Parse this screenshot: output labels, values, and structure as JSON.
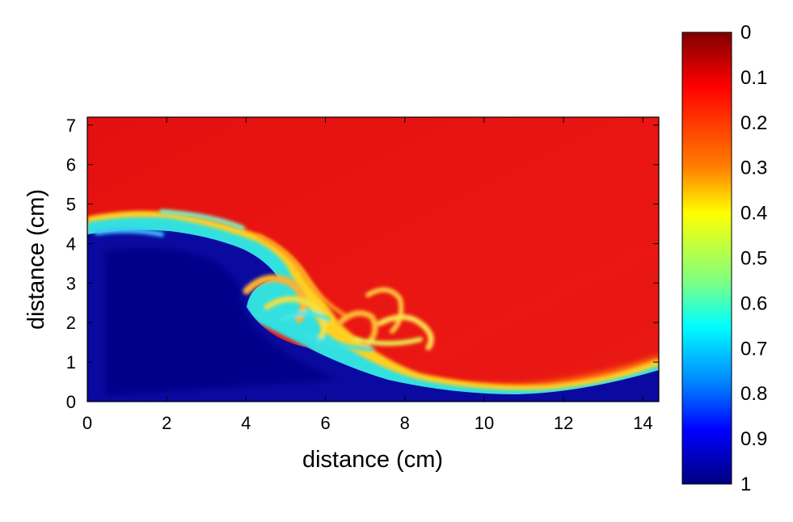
{
  "chart_data": {
    "type": "heatmap",
    "title": "",
    "xlabel": "distance (cm)",
    "ylabel": "distance (cm)",
    "xlim": [
      0,
      14.4
    ],
    "ylim": [
      0,
      7.2
    ],
    "x_ticks": [
      "0",
      "2",
      "4",
      "6",
      "8",
      "10",
      "12",
      "14"
    ],
    "y_ticks": [
      "0",
      "1",
      "2",
      "3",
      "4",
      "5",
      "6",
      "7"
    ],
    "colorbar": {
      "range": [
        0,
        1
      ],
      "orientation": "vertical",
      "reversed": true,
      "colormap": "jet",
      "labels": [
        "0",
        "0.1",
        "0.2",
        "0.3",
        "0.4",
        "0.5",
        "0.6",
        "0.7",
        "0.8",
        "0.9",
        "1"
      ]
    },
    "field_description_values": {
      "background_value": 0.12,
      "dense_region_value": 1.0,
      "interface_profile": [
        {
          "x": 0.0,
          "y": 4.5
        },
        {
          "x": 1.5,
          "y": 4.75
        },
        {
          "x": 2.5,
          "y": 4.7
        },
        {
          "x": 3.5,
          "y": 4.4
        },
        {
          "x": 4.5,
          "y": 3.8
        },
        {
          "x": 5.0,
          "y": 3.2
        },
        {
          "x": 5.5,
          "y": 2.6
        },
        {
          "x": 6.5,
          "y": 1.8
        },
        {
          "x": 8.0,
          "y": 1.05
        },
        {
          "x": 10.0,
          "y": 0.55
        },
        {
          "x": 12.0,
          "y": 0.65
        },
        {
          "x": 14.4,
          "y": 1.05
        }
      ]
    }
  }
}
